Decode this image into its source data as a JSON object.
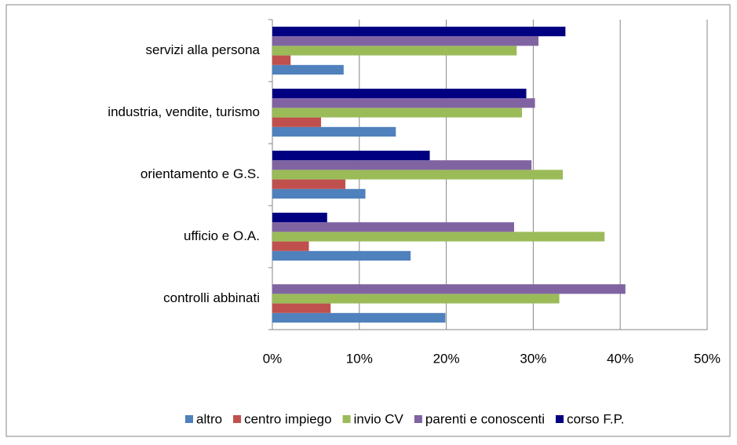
{
  "chart_data": {
    "type": "hbar",
    "categories": [
      "controlli abbinati",
      "ufficio e O.A.",
      "orientamento e G.S.",
      "industria, vendite, turismo",
      "servizi alla persona"
    ],
    "series": [
      {
        "name": "altro",
        "color": "#4f81bd",
        "values": [
          19.9,
          15.9,
          10.7,
          14.2,
          8.2
        ]
      },
      {
        "name": "centro impiego",
        "color": "#c0504d",
        "values": [
          6.7,
          4.2,
          8.4,
          5.6,
          2.1
        ]
      },
      {
        "name": "invio CV",
        "color": "#9bbb59",
        "values": [
          33.0,
          38.2,
          33.4,
          28.7,
          28.1
        ]
      },
      {
        "name": "parenti e conoscenti",
        "color": "#8064a2",
        "values": [
          40.6,
          27.8,
          29.8,
          30.2,
          30.6
        ]
      },
      {
        "name": "corso F.P.",
        "color": "#000080",
        "values": [
          null,
          6.3,
          18.1,
          29.2,
          33.7
        ]
      }
    ],
    "xlim": [
      0,
      50
    ],
    "xticks": [
      {
        "value": 0,
        "label": "0%"
      },
      {
        "value": 10,
        "label": "10%"
      },
      {
        "value": 20,
        "label": "20%"
      },
      {
        "value": 30,
        "label": "30%"
      },
      {
        "value": 40,
        "label": "40%"
      },
      {
        "value": 50,
        "label": "50%"
      }
    ],
    "grid": true,
    "legend": "bottom"
  }
}
